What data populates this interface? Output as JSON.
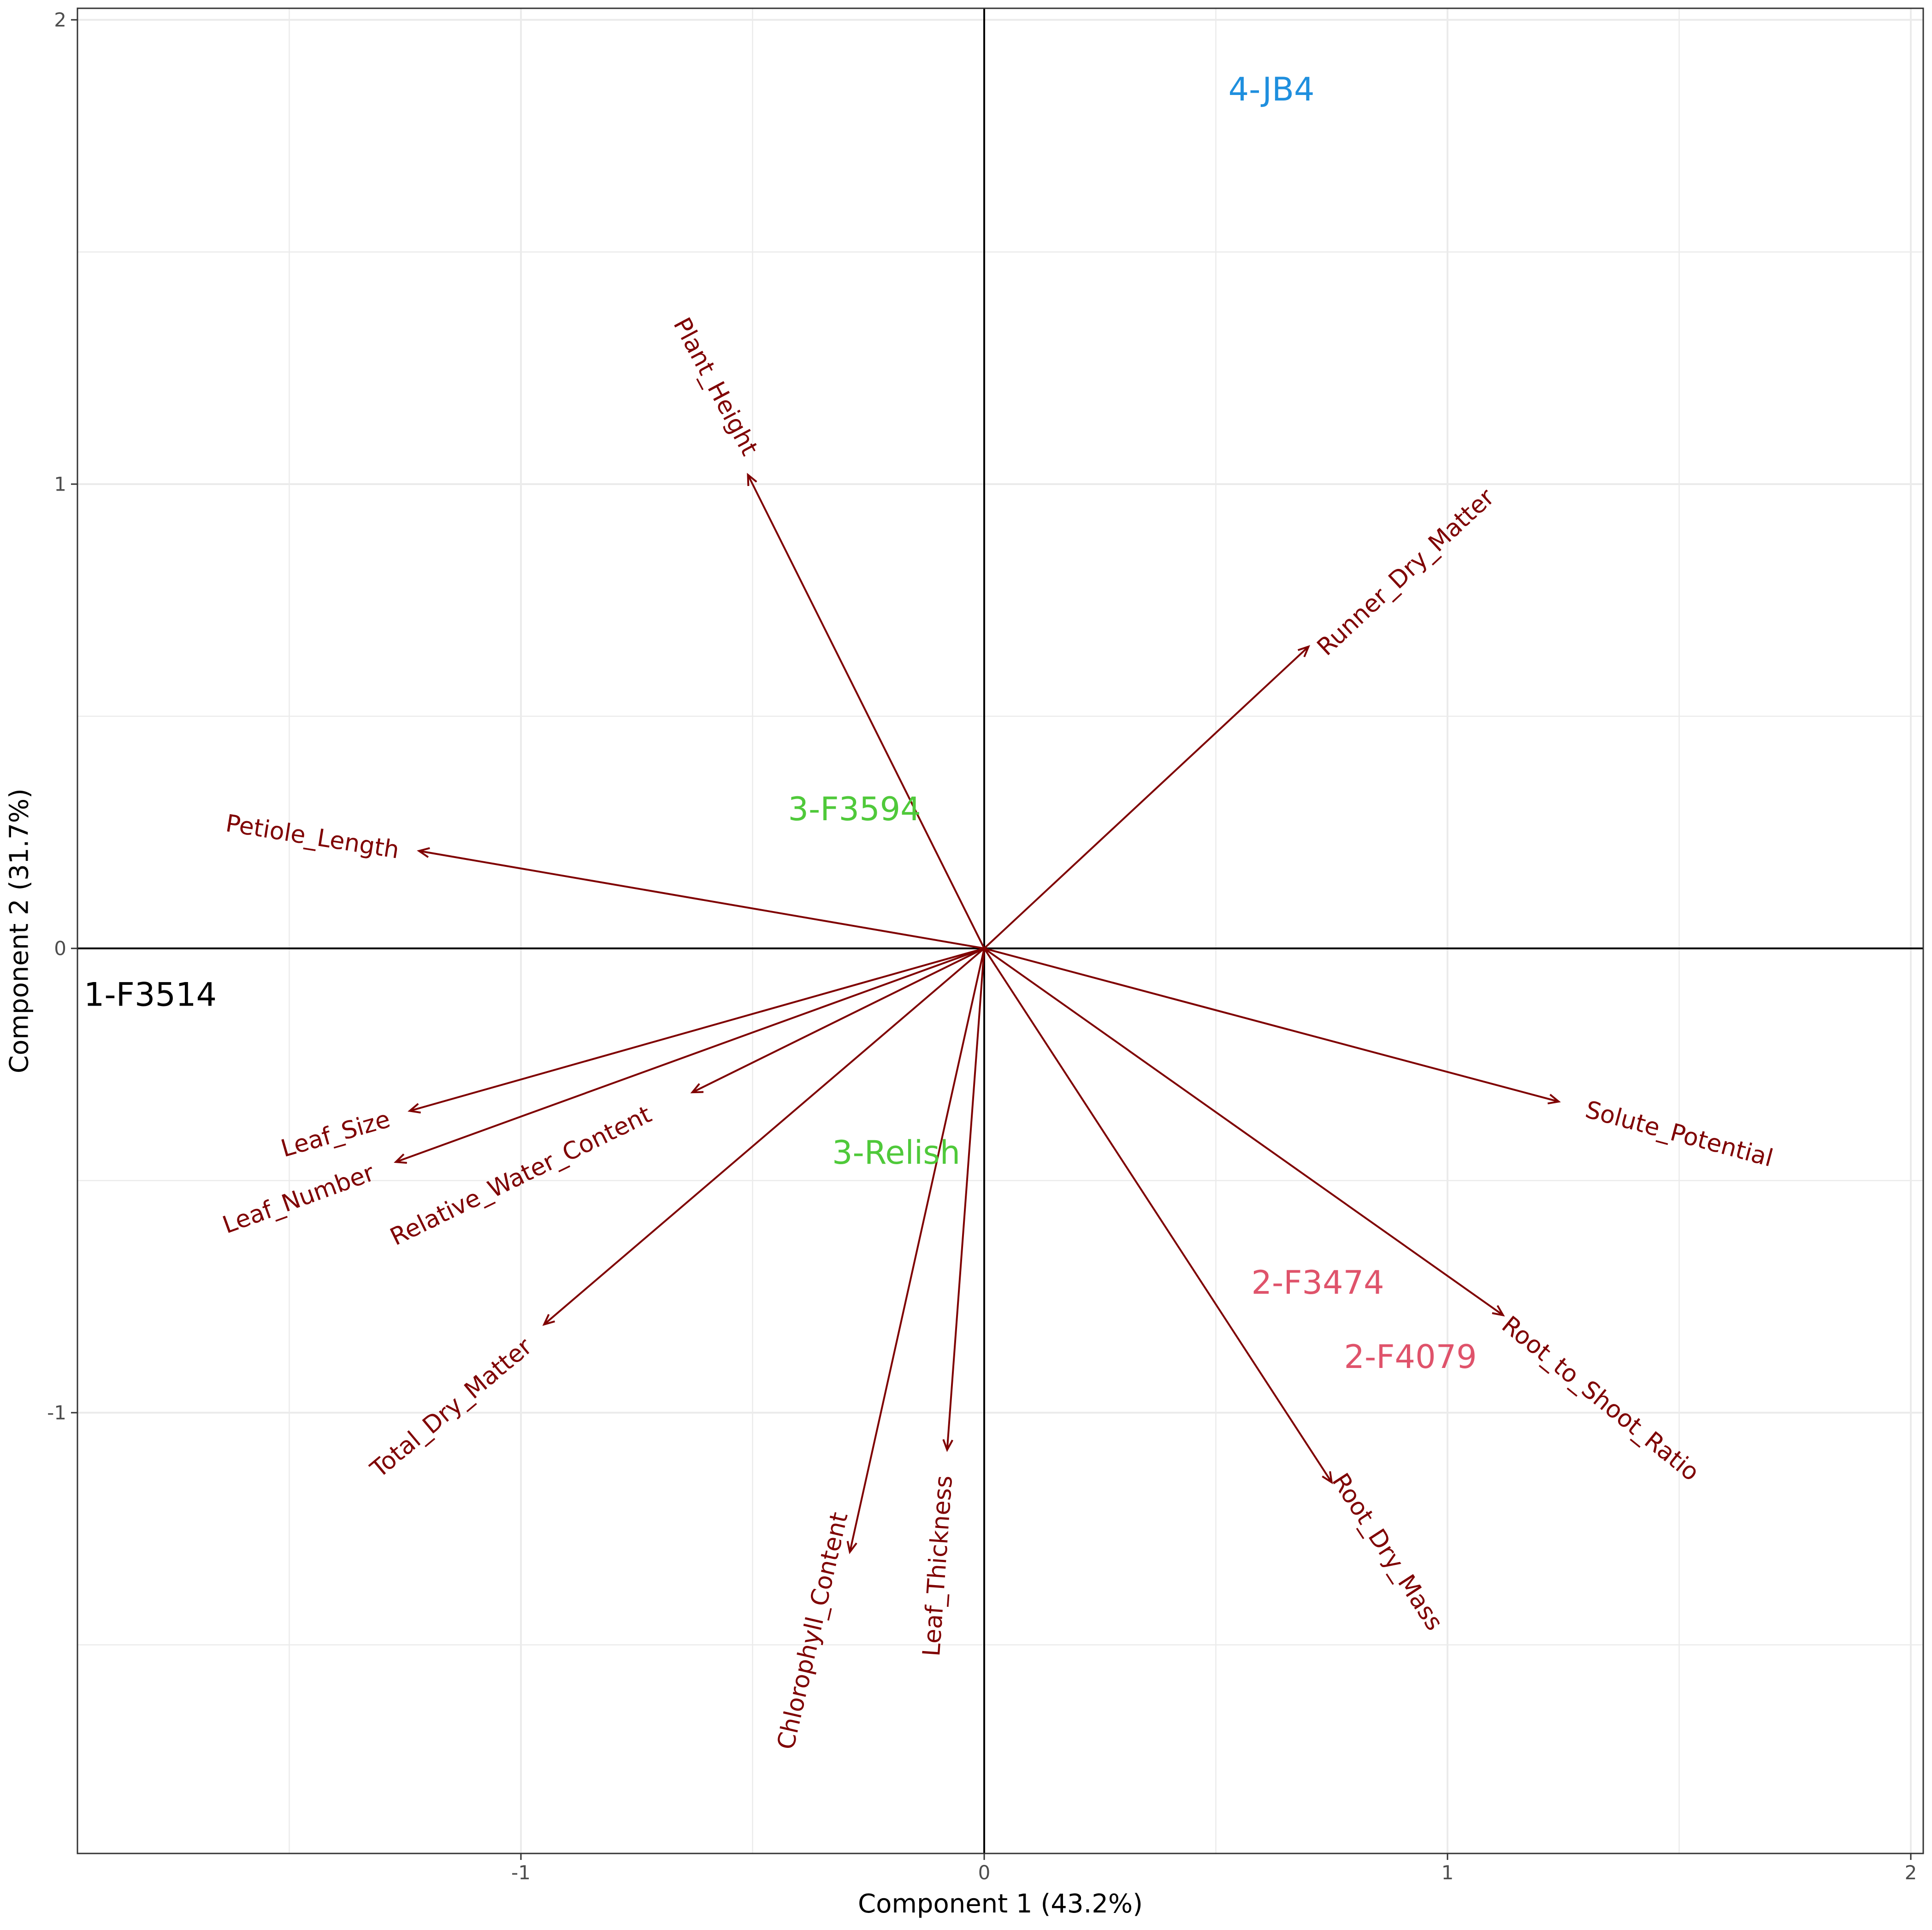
{
  "chart_data": {
    "type": "scatter",
    "subtype": "pca-biplot",
    "title": "",
    "xlabel": "Component 1 (43.2%)",
    "ylabel": "Component 2 (31.7%)",
    "xlim": [
      -1.96,
      2.0
    ],
    "ylim": [
      -1.95,
      2.02
    ],
    "x_ticks": [
      {
        "value": -1,
        "label": "-1"
      },
      {
        "value": 0,
        "label": "0"
      },
      {
        "value": 1,
        "label": "1"
      },
      {
        "value": 2,
        "label": "2"
      }
    ],
    "y_ticks": [
      {
        "value": -1,
        "label": "-1"
      },
      {
        "value": 0,
        "label": "0"
      },
      {
        "value": 1,
        "label": "1"
      },
      {
        "value": 2,
        "label": "2"
      }
    ],
    "grid": true,
    "loadings": [
      {
        "name": "Plant_Height",
        "x": -0.51,
        "y": 1.02,
        "label_x": -0.58,
        "label_y": 1.21,
        "angle": 62
      },
      {
        "name": "Runner_Dry_Matter",
        "x": 0.7,
        "y": 0.65,
        "label_x": 0.91,
        "label_y": 0.81,
        "angle": -43
      },
      {
        "name": "Petiole_Length",
        "x": -1.22,
        "y": 0.21,
        "label_x": -1.45,
        "label_y": 0.24,
        "angle": 9
      },
      {
        "name": "Leaf_Size",
        "x": -1.24,
        "y": -0.35,
        "label_x": -1.4,
        "label_y": -0.4,
        "angle": -16
      },
      {
        "name": "Leaf_Number",
        "x": -1.27,
        "y": -0.46,
        "label_x": -1.48,
        "label_y": -0.54,
        "angle": -20
      },
      {
        "name": "Relative_Water_Content",
        "x": -0.63,
        "y": -0.31,
        "label_x": -1.0,
        "label_y": -0.49,
        "angle": -26
      },
      {
        "name": "Total_Dry_Matter",
        "x": -0.95,
        "y": -0.81,
        "label_x": -1.15,
        "label_y": -0.99,
        "angle": -40
      },
      {
        "name": "Chlorophyll_Content",
        "x": -0.29,
        "y": -1.3,
        "label_x": -0.37,
        "label_y": -1.47,
        "angle": -77
      },
      {
        "name": "Leaf_Thickness",
        "x": -0.08,
        "y": -1.08,
        "label_x": -0.1,
        "label_y": -1.33,
        "angle": -86
      },
      {
        "name": "Root_Dry_Mass",
        "x": 0.75,
        "y": -1.15,
        "label_x": 0.87,
        "label_y": -1.3,
        "angle": 57
      },
      {
        "name": "Root_to_Shoot_Ratio",
        "x": 1.12,
        "y": -0.79,
        "label_x": 1.33,
        "label_y": -0.97,
        "angle": 39
      },
      {
        "name": "Solute_Potential",
        "x": 1.24,
        "y": -0.33,
        "label_x": 1.5,
        "label_y": -0.4,
        "angle": 15
      }
    ],
    "observations": [
      {
        "label": "4-JB4",
        "x": 0.62,
        "y": 1.85,
        "color": "#1f8fde"
      },
      {
        "label": "3-F3594",
        "x": -0.28,
        "y": 0.3,
        "color": "#4fc93a"
      },
      {
        "label": "1-F3514",
        "x": -1.8,
        "y": -0.1,
        "color": "#000000"
      },
      {
        "label": "3-Relish",
        "x": -0.19,
        "y": -0.44,
        "color": "#4fc93a"
      },
      {
        "label": "2-F3474",
        "x": 0.72,
        "y": -0.72,
        "color": "#df536b"
      },
      {
        "label": "2-F4079",
        "x": 0.92,
        "y": -0.88,
        "color": "#df536b"
      }
    ],
    "colors": {
      "loading": "#7f0000",
      "grid": "#ebebeb",
      "panel_border": "#333333",
      "zero_line": "#000000",
      "tick_text": "#4d4d4d"
    }
  }
}
